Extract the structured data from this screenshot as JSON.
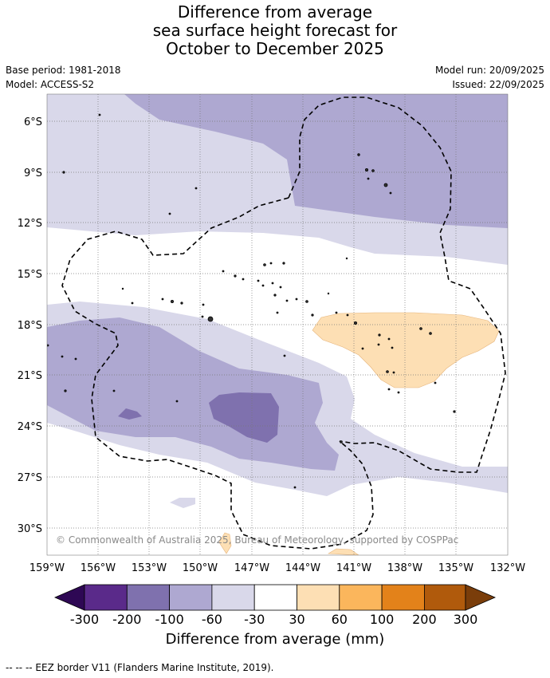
{
  "title": {
    "line1": "Difference from average",
    "line2": "sea surface height forecast for",
    "line3": "October to December 2025"
  },
  "meta": {
    "base_period": "Base period: 1981-2018",
    "model": "Model: ACCESS-S2",
    "model_run": "Model run: 20/09/2025",
    "issued": "Issued: 22/09/2025"
  },
  "map": {
    "lat_labels": [
      "6°S",
      "9°S",
      "12°S",
      "15°S",
      "18°S",
      "21°S",
      "24°S",
      "27°S",
      "30°S"
    ],
    "lon_labels": [
      "159°W",
      "156°W",
      "153°W",
      "150°W",
      "147°W",
      "144°W",
      "141°W",
      "138°W",
      "135°W",
      "132°W"
    ],
    "copyright": "© Commonwealth of Australia 2025, Bureau of Meteorology, supported by COSPPac"
  },
  "colorbar": {
    "title": "Difference from average (mm)",
    "tick_labels": [
      "-300",
      "-200",
      "-100",
      "-60",
      "-30",
      "30",
      "60",
      "100",
      "200",
      "300"
    ],
    "colors": [
      "#2e0854",
      "#5a2a8a",
      "#7f71ae",
      "#aea8d1",
      "#d9d8ea",
      "#ffffff",
      "#fddfb4",
      "#fbb65c",
      "#e3821a",
      "#b05a0c",
      "#7a3d0a"
    ]
  },
  "legend_note": "--  --  -- EEZ border V11 (Flanders Marine Institute, 2019)."
}
